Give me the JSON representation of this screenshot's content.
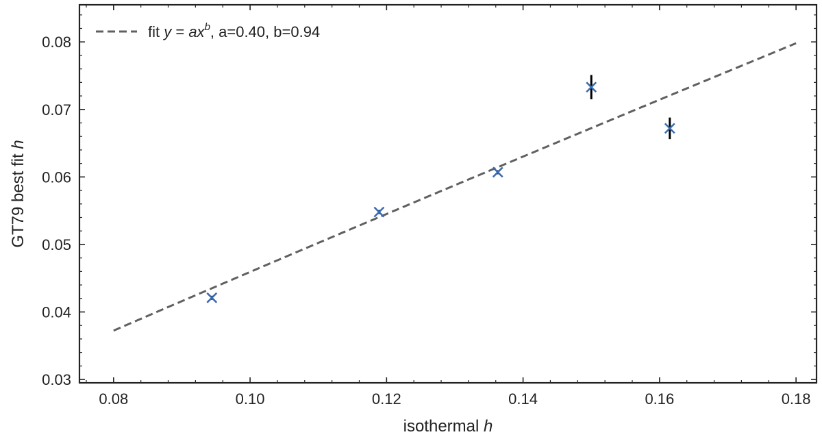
{
  "chart_data": {
    "type": "scatter",
    "xlabel": "isothermal",
    "xlabel_var": "h",
    "ylabel": "GT79 best fit",
    "ylabel_var": "h",
    "xlim": [
      0.075,
      0.183
    ],
    "ylim": [
      0.0295,
      0.0855
    ],
    "xticks": [
      "0.08",
      "0.10",
      "0.12",
      "0.14",
      "0.16",
      "0.18"
    ],
    "yticks": [
      "0.03",
      "0.04",
      "0.05",
      "0.06",
      "0.07",
      "0.08"
    ],
    "grid": false,
    "legend_position": "top-left",
    "points": [
      {
        "x": 0.0944,
        "y": 0.0421,
        "yerr": 0.0003
      },
      {
        "x": 0.1189,
        "y": 0.0548,
        "yerr": 0.0003
      },
      {
        "x": 0.1363,
        "y": 0.0607,
        "yerr": 0.0003
      },
      {
        "x": 0.15,
        "y": 0.0733,
        "yerr": 0.0018
      },
      {
        "x": 0.1615,
        "y": 0.0672,
        "yerr": 0.0016
      }
    ],
    "fit": {
      "a": 0.4,
      "b": 0.94,
      "x_range": [
        0.08,
        0.18
      ],
      "legend": {
        "prefix": "fit ",
        "equation_y": "y",
        "equation_eq": " = ",
        "equation_ax": "ax",
        "equation_exp": "b",
        "suffix": ", a=0.40, b=0.94"
      }
    },
    "colors": {
      "marker": "#3b6bb0",
      "errorbar": "#000000",
      "fit_line": "#606060",
      "axes": "#222222"
    }
  }
}
